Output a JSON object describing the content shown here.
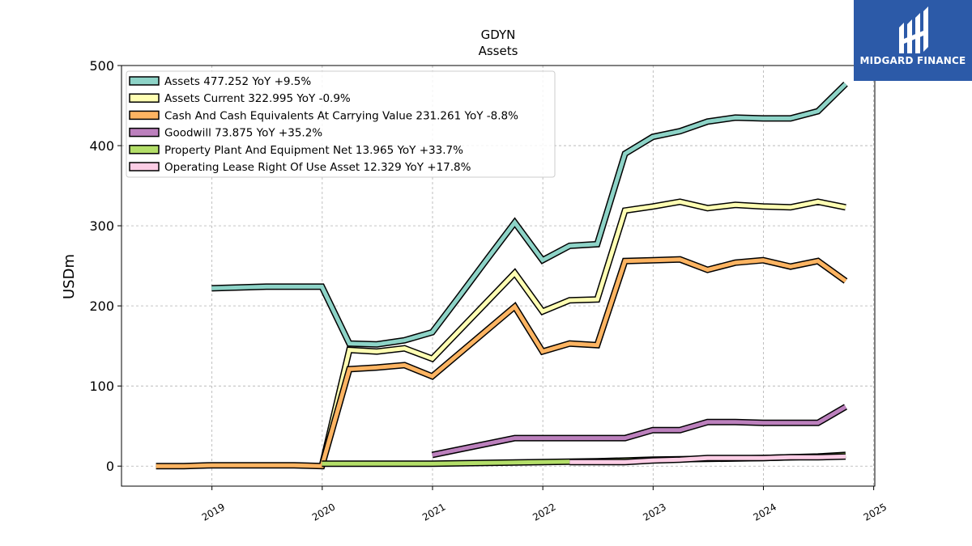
{
  "brand": {
    "name": "MIDGARD FINANCE",
    "color": "#2c5aa8"
  },
  "chart_data": {
    "type": "line",
    "title": "GDYN",
    "subtitle": "Assets",
    "ylabel": "USDm",
    "xlabel": "",
    "ylim": [
      -25,
      500
    ],
    "xlim": [
      2018.18,
      2025.01
    ],
    "yticks": [
      0,
      100,
      200,
      300,
      400,
      500
    ],
    "xticks": [
      "2019",
      "2020",
      "2021",
      "2022",
      "2023",
      "2024",
      "2025"
    ],
    "grid": true,
    "legend_position": "top-left",
    "series": [
      {
        "name": "Assets",
        "legend": "Assets  477.252 YoY +9.5%",
        "color": "#8dd3c7",
        "x": [
          "2018-12-31",
          "2019-03-31",
          "2019-06-30",
          "2019-09-30",
          "2019-12-31",
          "2020-03-31",
          "2020-06-30",
          "2020-09-30",
          "2020-12-31",
          "2021-03-31",
          "2021-06-30",
          "2021-09-30",
          "2021-12-31",
          "2022-03-31",
          "2022-06-30",
          "2022-09-30",
          "2022-12-31",
          "2023-03-31",
          "2023-06-30",
          "2023-09-30",
          "2023-12-31",
          "2024-03-31",
          "2024-06-30",
          "2024-09-30"
        ],
        "y": [
          222,
          223,
          224,
          224,
          224,
          153,
          152,
          157,
          167,
          212,
          258,
          304,
          257,
          275,
          277,
          390,
          411,
          418,
          430,
          435,
          434,
          434,
          443,
          477
        ]
      },
      {
        "name": "Assets Current",
        "legend": "Assets Current  322.995 YoY -0.9%",
        "color": "#ffffb3",
        "x": [
          "2019-12-31",
          "2020-03-31",
          "2020-06-30",
          "2020-09-30",
          "2020-12-31",
          "2021-09-30",
          "2021-12-31",
          "2022-03-31",
          "2022-06-30",
          "2022-09-30",
          "2022-12-31",
          "2023-03-31",
          "2023-06-30",
          "2023-09-30",
          "2023-12-31",
          "2024-03-31",
          "2024-06-30",
          "2024-09-30"
        ],
        "y": [
          0,
          145,
          143,
          147,
          134,
          241,
          193,
          207,
          208,
          319,
          324,
          330,
          322,
          326,
          324,
          323,
          330,
          323
        ]
      },
      {
        "name": "Cash And Cash Equivalents At Carrying Value",
        "legend": "Cash And Cash Equivalents At Carrying Value  231.261 YoY -8.8%",
        "color": "#fdb462",
        "x": [
          "2018-06-30",
          "2018-09-30",
          "2018-12-31",
          "2019-03-31",
          "2019-06-30",
          "2019-09-30",
          "2019-12-31",
          "2020-03-31",
          "2020-06-30",
          "2020-09-30",
          "2020-12-31",
          "2021-09-30",
          "2021-12-31",
          "2022-03-31",
          "2022-06-30",
          "2022-09-30",
          "2022-12-31",
          "2023-03-31",
          "2023-06-30",
          "2023-09-30",
          "2023-12-31",
          "2024-03-31",
          "2024-06-30",
          "2024-09-30"
        ],
        "y": [
          0,
          0,
          1,
          1,
          1,
          1,
          0,
          121,
          123,
          126,
          112,
          199,
          143,
          153,
          151,
          256,
          257,
          258,
          245,
          254,
          257,
          249,
          256,
          231
        ]
      },
      {
        "name": "Goodwill",
        "legend": "Goodwill  73.875 YoY +35.2%",
        "color": "#bc80bd",
        "x": [
          "2020-12-31",
          "2021-09-30",
          "2021-12-31",
          "2022-03-31",
          "2022-06-30",
          "2022-09-30",
          "2022-12-31",
          "2023-03-31",
          "2023-06-30",
          "2023-09-30",
          "2023-12-31",
          "2024-03-31",
          "2024-06-30",
          "2024-09-30"
        ],
        "y": [
          14,
          35,
          35,
          35,
          35,
          35,
          45,
          45,
          55,
          55,
          54,
          54,
          54,
          74
        ]
      },
      {
        "name": "Property Plant And Equipment Net",
        "legend": "Property Plant And Equipment Net  13.965 YoY +33.7%",
        "color": "#b3de69",
        "x": [
          "2019-12-31",
          "2020-06-30",
          "2020-12-31",
          "2021-06-30",
          "2021-12-31",
          "2022-06-30",
          "2022-12-31",
          "2023-06-30",
          "2023-12-31",
          "2024-06-30",
          "2024-09-30"
        ],
        "y": [
          3,
          3,
          3,
          4,
          5,
          6,
          8,
          9,
          10,
          12,
          14
        ]
      },
      {
        "name": "Operating Lease Right Of Use Asset",
        "legend": "Operating Lease Right Of Use Asset  12.329 YoY +17.8%",
        "color": "#fccde5",
        "x": [
          "2022-03-31",
          "2022-06-30",
          "2022-09-30",
          "2022-12-31",
          "2023-03-31",
          "2023-06-30",
          "2023-09-30",
          "2023-12-31",
          "2024-03-31",
          "2024-06-30",
          "2024-09-30"
        ],
        "y": [
          5,
          5,
          5,
          7,
          8,
          10,
          10,
          10,
          11,
          11,
          12
        ]
      }
    ]
  }
}
